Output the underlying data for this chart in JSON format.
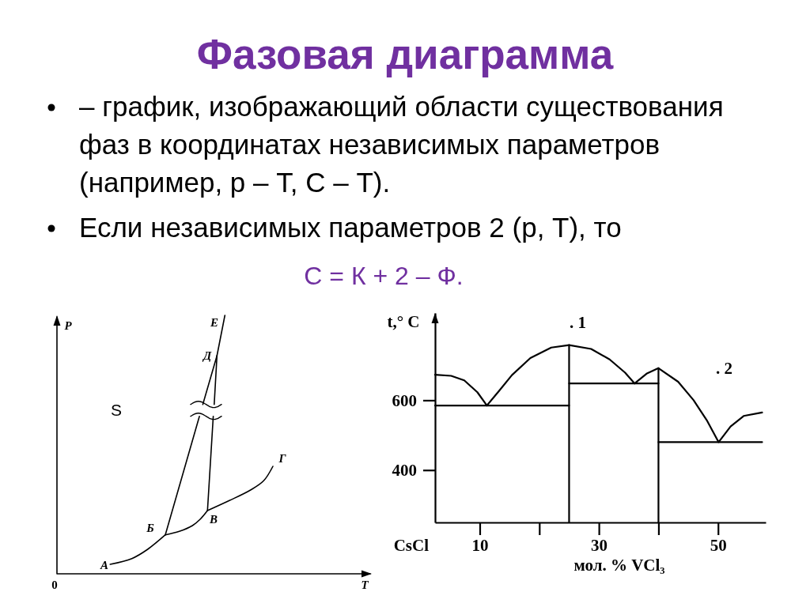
{
  "chart_data": [
    {
      "type": "other",
      "title": "Фазовая диаграмма",
      "annotations": [
        "– график, изображающий области существования фаз в координатах независимых параметров (например, р – Т, С – Т).",
        "Если независимых параметров 2 (р, Т), то",
        "С = К + 2 – Ф."
      ]
    },
    {
      "type": "other",
      "xlabel": "T",
      "ylabel": "P",
      "annotations": [
        "0",
        "А",
        "Б",
        "В",
        "Г",
        "Д",
        "Е",
        "S"
      ]
    },
    {
      "type": "line",
      "xlabel": "мол. % VCl₃",
      "ylabel": "t,° C",
      "xlim": [
        2.5,
        58
      ],
      "xticks": [
        10,
        {
          "value": 20,
          "label": null
        },
        30,
        {
          "value": 40,
          "label": null
        },
        50
      ],
      "ylim": [
        250,
        850
      ],
      "yticks": [
        400,
        600
      ],
      "series": [
        {
          "color": "#000000",
          "x": [
            2.5,
            5.2,
            7.4,
            9.6,
            11.2,
            13.2,
            15.4,
            18.5,
            22,
            25,
            28.7,
            31.8,
            34.4,
            36,
            38,
            40,
            43.3,
            45.9,
            48.1,
            50.1,
            52.1,
            54.3,
            57.4
          ],
          "values": [
            673,
            670,
            657,
            623,
            585,
            626,
            672,
            721,
            751,
            758,
            747,
            717,
            679,
            648,
            676,
            692,
            653,
            600,
            543,
            480,
            525,
            555,
            565
          ]
        },
        {
          "color": "#000000",
          "x": [
            25,
            25
          ],
          "values": [
            250,
            758
          ]
        },
        {
          "color": "#000000",
          "x": [
            40,
            40
          ],
          "values": [
            250,
            692
          ]
        },
        {
          "color": "#000000",
          "x": [
            2.5,
            25
          ],
          "values": [
            585,
            585
          ]
        },
        {
          "color": "#000000",
          "x": [
            25,
            40
          ],
          "values": [
            648,
            648
          ]
        },
        {
          "color": "#000000",
          "x": [
            40,
            57.4
          ],
          "values": [
            480,
            480
          ]
        }
      ],
      "annotations": [
        "CsCl",
        ". 1",
        ". 2"
      ]
    }
  ]
}
